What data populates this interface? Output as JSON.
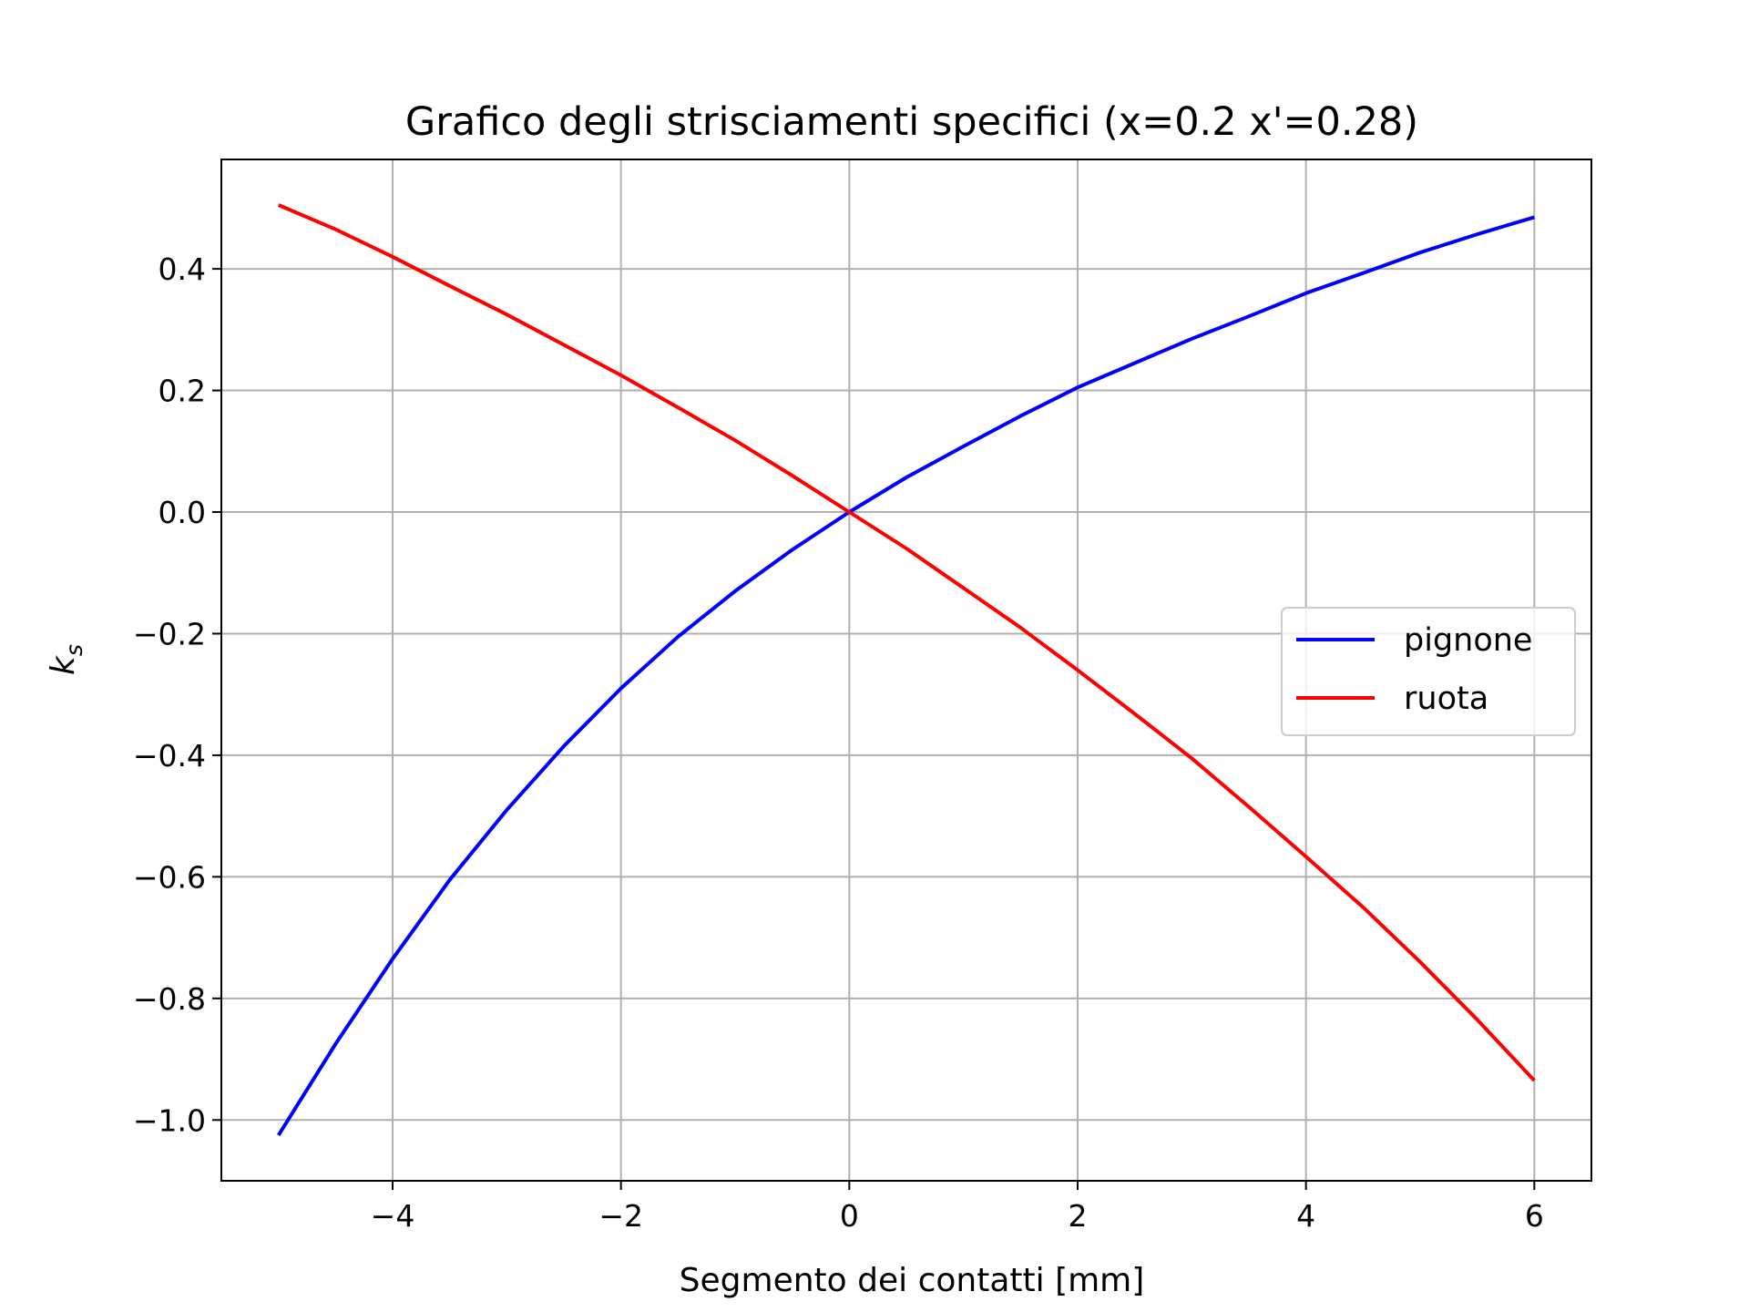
{
  "chart_data": {
    "type": "line",
    "title": "Grafico degli strisciamenti specifici (x=0.2  x'=0.28)",
    "xlabel": "Segmento dei contatti [mm]",
    "ylabel_main": "k",
    "ylabel_sub": "s",
    "xlim": [
      -5.5,
      6.5
    ],
    "ylim": [
      -1.1,
      0.58
    ],
    "xticks": [
      -4,
      -2,
      0,
      2,
      4,
      6
    ],
    "xtick_labels": [
      "−4",
      "−2",
      "0",
      "2",
      "4",
      "6"
    ],
    "yticks": [
      -1.0,
      -0.8,
      -0.6,
      -0.4,
      -0.2,
      0.0,
      0.2,
      0.4
    ],
    "ytick_labels": [
      "−1.0",
      "−0.8",
      "−0.6",
      "−0.4",
      "−0.2",
      "0.0",
      "0.2",
      "0.4"
    ],
    "grid": true,
    "legend_position": "center-right",
    "series": [
      {
        "name": "pignone",
        "color": "#0000ff",
        "x": [
          -5,
          -4.5,
          -4,
          -3.5,
          -3,
          -2.5,
          -2,
          -1.5,
          -1,
          -0.5,
          0,
          0.5,
          1,
          1.5,
          2,
          2.5,
          3,
          3.5,
          4,
          4.5,
          5,
          5.5,
          6
        ],
        "y": [
          -1.025,
          -0.875,
          -0.735,
          -0.605,
          -0.49,
          -0.385,
          -0.29,
          -0.205,
          -0.13,
          -0.062,
          0.0,
          0.057,
          0.108,
          0.158,
          0.205,
          0.245,
          0.285,
          0.322,
          0.36,
          0.393,
          0.427,
          0.457,
          0.485
        ]
      },
      {
        "name": "ruota",
        "color": "#ff0000",
        "x": [
          -5,
          -4.5,
          -4,
          -3.5,
          -3,
          -2.5,
          -2,
          -1.5,
          -1,
          -0.5,
          0,
          0.5,
          1,
          1.5,
          2,
          2.5,
          3,
          3.5,
          4,
          4.5,
          5,
          5.5,
          6
        ],
        "y": [
          0.505,
          0.465,
          0.42,
          0.372,
          0.325,
          0.275,
          0.225,
          0.172,
          0.118,
          0.06,
          0.0,
          -0.06,
          -0.125,
          -0.19,
          -0.26,
          -0.332,
          -0.405,
          -0.485,
          -0.567,
          -0.65,
          -0.74,
          -0.835,
          -0.935
        ]
      }
    ]
  }
}
